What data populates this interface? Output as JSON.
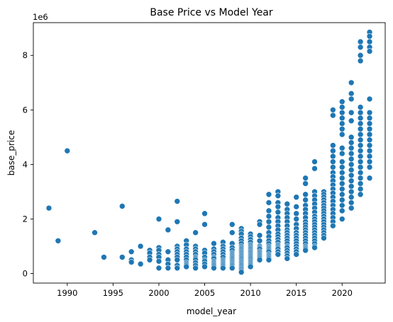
{
  "chart_data": {
    "type": "scatter",
    "title": "Base Price vs Model Year",
    "xlabel": "model_year",
    "ylabel": "base_price",
    "y_offset_label": "1e6",
    "xlim": [
      1986.3,
      2024.7
    ],
    "ylim": [
      -0.35,
      9.2
    ],
    "x_ticks": [
      1990,
      1995,
      2000,
      2005,
      2010,
      2015,
      2020
    ],
    "y_ticks": [
      0,
      2,
      4,
      6,
      8
    ],
    "y_units": "millions",
    "grid": false,
    "legend": "none",
    "point_color": "#1f77b4",
    "points_by_year": [
      {
        "x": 1988,
        "y": [
          2.4
        ]
      },
      {
        "x": 1989,
        "y": [
          1.2
        ]
      },
      {
        "x": 1990,
        "y": [
          4.5
        ]
      },
      {
        "x": 1993,
        "y": [
          1.5
        ]
      },
      {
        "x": 1994,
        "y": [
          0.6
        ]
      },
      {
        "x": 1996,
        "y": [
          2.47,
          0.6
        ]
      },
      {
        "x": 1997,
        "y": [
          0.8,
          0.5,
          0.42
        ]
      },
      {
        "x": 1998,
        "y": [
          1.0,
          0.35
        ]
      },
      {
        "x": 1999,
        "y": [
          0.85,
          0.75,
          0.6,
          0.5
        ]
      },
      {
        "x": 2000,
        "y": [
          2.0,
          0.95,
          0.85,
          0.7,
          0.6,
          0.45,
          0.2
        ]
      },
      {
        "x": 2001,
        "y": [
          1.6,
          0.8,
          0.5,
          0.35,
          0.2
        ]
      },
      {
        "x": 2002,
        "y": [
          2.65,
          1.9,
          1.0,
          0.9,
          0.8,
          0.7,
          0.6,
          0.5,
          0.3,
          0.2
        ]
      },
      {
        "x": 2003,
        "y": [
          1.2,
          1.05,
          0.9,
          0.8,
          0.7,
          0.6,
          0.5,
          0.4,
          0.35,
          0.3,
          0.25
        ]
      },
      {
        "x": 2004,
        "y": [
          1.5,
          1.0,
          0.9,
          0.8,
          0.7,
          0.6,
          0.55,
          0.5,
          0.4,
          0.3,
          0.2
        ]
      },
      {
        "x": 2005,
        "y": [
          2.2,
          1.8,
          0.85,
          0.75,
          0.6,
          0.5,
          0.45,
          0.35,
          0.25
        ]
      },
      {
        "x": 2006,
        "y": [
          1.1,
          0.9,
          0.8,
          0.7,
          0.6,
          0.55,
          0.45,
          0.4,
          0.35,
          0.3,
          0.25,
          0.2
        ]
      },
      {
        "x": 2007,
        "y": [
          1.15,
          1.0,
          0.9,
          0.8,
          0.7,
          0.6,
          0.5,
          0.45,
          0.4,
          0.35,
          0.3,
          0.25,
          0.2
        ]
      },
      {
        "x": 2008,
        "y": [
          1.8,
          1.5,
          1.1,
          0.95,
          0.85,
          0.75,
          0.7,
          0.65,
          0.6,
          0.55,
          0.5,
          0.45,
          0.4,
          0.35,
          0.3,
          0.25,
          0.2
        ]
      },
      {
        "x": 2009,
        "y": [
          1.65,
          1.55,
          1.45,
          1.3,
          1.2,
          1.1,
          1.0,
          0.95,
          0.9,
          0.85,
          0.8,
          0.75,
          0.7,
          0.65,
          0.6,
          0.55,
          0.5,
          0.45,
          0.4,
          0.35,
          0.3,
          0.25,
          0.2,
          0.15,
          0.1,
          0.05
        ]
      },
      {
        "x": 2010,
        "y": [
          1.45,
          1.35,
          1.25,
          1.15,
          1.05,
          1.0,
          0.95,
          0.9,
          0.85,
          0.8,
          0.75,
          0.7,
          0.65,
          0.6,
          0.55,
          0.5,
          0.45,
          0.4,
          0.35,
          0.3,
          0.25
        ]
      },
      {
        "x": 2011,
        "y": [
          1.9,
          1.8,
          1.4,
          1.2,
          1.0,
          0.95,
          0.9,
          0.8,
          0.75,
          0.7,
          0.65,
          0.6,
          0.55,
          0.5
        ]
      },
      {
        "x": 2012,
        "y": [
          2.9,
          2.6,
          2.3,
          2.1,
          1.9,
          1.7,
          1.5,
          1.35,
          1.2,
          1.1,
          1.0,
          0.95,
          0.9,
          0.85,
          0.8,
          0.7,
          0.65,
          0.6,
          0.55,
          0.5
        ]
      },
      {
        "x": 2013,
        "y": [
          3.0,
          2.85,
          2.6,
          2.45,
          2.25,
          2.05,
          1.9,
          1.75,
          1.6,
          1.45,
          1.35,
          1.25,
          1.15,
          1.05,
          1.0,
          0.95,
          0.9,
          0.8,
          0.7
        ]
      },
      {
        "x": 2014,
        "y": [
          2.55,
          2.35,
          2.2,
          2.05,
          1.9,
          1.75,
          1.6,
          1.5,
          1.4,
          1.3,
          1.2,
          1.1,
          1.0,
          0.95,
          0.85,
          0.75,
          0.65,
          0.55
        ]
      },
      {
        "x": 2015,
        "y": [
          2.8,
          2.45,
          2.2,
          2.0,
          1.8,
          1.65,
          1.5,
          1.4,
          1.3,
          1.2,
          1.1,
          1.0,
          0.9,
          0.8,
          0.7
        ]
      },
      {
        "x": 2016,
        "y": [
          3.5,
          3.3,
          2.9,
          2.7,
          2.5,
          2.35,
          2.2,
          2.05,
          1.9,
          1.8,
          1.7,
          1.6,
          1.5,
          1.4,
          1.3,
          1.2,
          1.1,
          1.0,
          0.95,
          0.9,
          0.85
        ]
      },
      {
        "x": 2017,
        "y": [
          4.1,
          3.85,
          3.0,
          2.85,
          2.7,
          2.55,
          2.4,
          2.25,
          2.1,
          2.0,
          1.9,
          1.8,
          1.7,
          1.6,
          1.5,
          1.4,
          1.3,
          1.2,
          1.1,
          1.0,
          0.95
        ]
      },
      {
        "x": 2018,
        "y": [
          3.0,
          2.9,
          2.8,
          2.7,
          2.6,
          2.5,
          2.4,
          2.3,
          2.2,
          2.1,
          2.0,
          1.9,
          1.8,
          1.7,
          1.6,
          1.5,
          1.4,
          1.3
        ]
      },
      {
        "x": 2019,
        "y": [
          6.0,
          5.8,
          4.7,
          4.5,
          4.3,
          4.1,
          3.9,
          3.7,
          3.55,
          3.4,
          3.25,
          3.1,
          2.95,
          2.8,
          2.65,
          2.5,
          2.35,
          2.2,
          2.05,
          1.9,
          1.75
        ]
      },
      {
        "x": 2020,
        "y": [
          6.3,
          6.1,
          5.9,
          5.7,
          5.5,
          5.3,
          5.1,
          4.6,
          4.4,
          4.1,
          3.9,
          3.7,
          3.5,
          3.3,
          3.1,
          2.9,
          2.7,
          2.5,
          2.3,
          2.0
        ]
      },
      {
        "x": 2021,
        "y": [
          7.0,
          6.6,
          6.4,
          5.9,
          5.6,
          5.0,
          4.8,
          4.6,
          4.4,
          4.2,
          4.0,
          3.8,
          3.6,
          3.4,
          3.2,
          3.0,
          2.8,
          2.6,
          2.4
        ]
      },
      {
        "x": 2022,
        "y": [
          8.5,
          8.3,
          8.0,
          7.8,
          6.1,
          5.9,
          5.7,
          5.5,
          5.3,
          5.1,
          4.9,
          4.7,
          4.5,
          4.3,
          4.1,
          3.9,
          3.7,
          3.5,
          3.3,
          3.1,
          2.9
        ]
      },
      {
        "x": 2023,
        "y": [
          8.85,
          8.7,
          8.5,
          8.3,
          8.15,
          6.4,
          5.9,
          5.7,
          5.5,
          5.3,
          5.1,
          4.9,
          4.7,
          4.5,
          4.3,
          4.1,
          3.9,
          3.5
        ]
      }
    ]
  }
}
